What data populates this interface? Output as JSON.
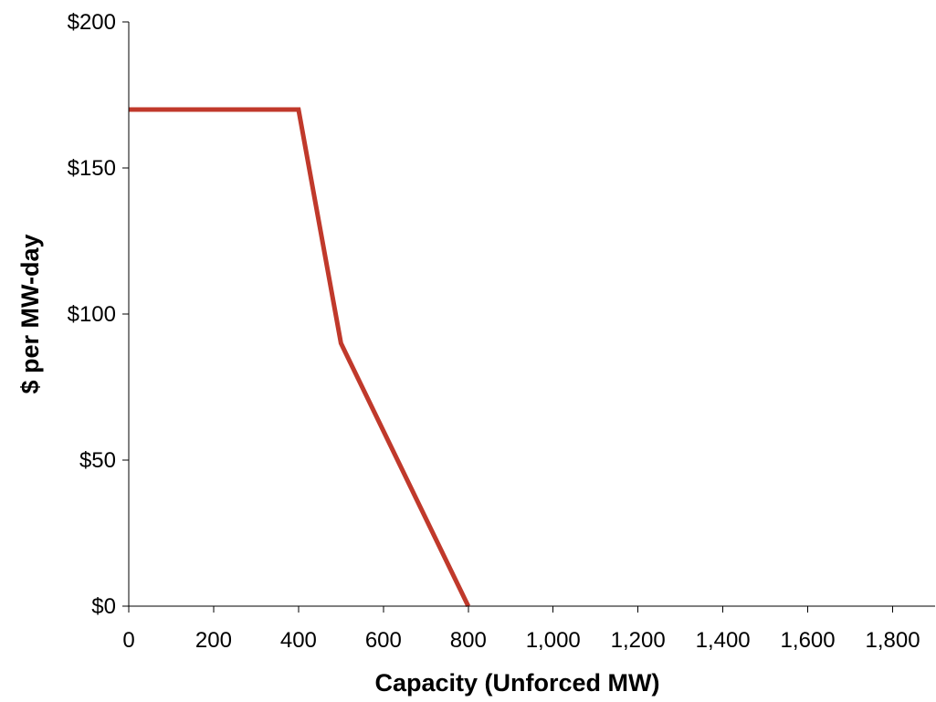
{
  "chart_data": {
    "type": "line",
    "title": "",
    "xlabel": "Capacity (Unforced MW)",
    "ylabel": "$ per MW-day",
    "xlim": [
      0,
      1900
    ],
    "ylim": [
      0,
      200
    ],
    "x_ticks": [
      0,
      200,
      400,
      600,
      800,
      1000,
      1200,
      1400,
      1600,
      1800
    ],
    "x_tick_labels": [
      "0",
      "200",
      "400",
      "600",
      "800",
      "1,000",
      "1,200",
      "1,400",
      "1,600",
      "1,800"
    ],
    "y_ticks": [
      0,
      50,
      100,
      150,
      200
    ],
    "y_tick_labels": [
      "$0",
      "$50",
      "$100",
      "$150",
      "$200"
    ],
    "grid": false,
    "legend": "none",
    "series": [
      {
        "color": "#C0392B",
        "points": [
          {
            "x": 0,
            "y": 170
          },
          {
            "x": 400,
            "y": 170
          },
          {
            "x": 500,
            "y": 90
          },
          {
            "x": 800,
            "y": 0
          }
        ]
      }
    ]
  }
}
